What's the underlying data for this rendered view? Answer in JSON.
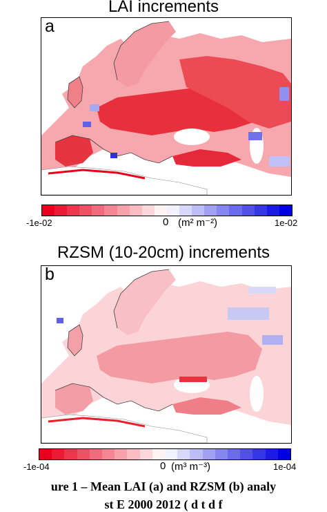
{
  "panel_a": {
    "title": "LAI increments",
    "letter": "a",
    "colorbar": {
      "min_label": "-1e-02",
      "zero_label": "0",
      "unit_label": "(m² m⁻²)",
      "max_label": "1e-02"
    }
  },
  "panel_b": {
    "title": "RZSM (10-20cm) increments",
    "letter": "b",
    "colorbar": {
      "min_label": "-1e-04",
      "zero_label": "0",
      "unit_label": "(m³ m⁻³)",
      "max_label": "1e-04"
    }
  },
  "caption": {
    "line1": "ure 1 – Mean LAI (a) and RZSM (b) analy",
    "line2": "st       E       2000 2012 (  d   t d f"
  },
  "colors": {
    "negative_strong": "#e8001c",
    "neutral": "#ffffff",
    "positive_strong": "#0000e0",
    "coastline": "#404040"
  }
}
